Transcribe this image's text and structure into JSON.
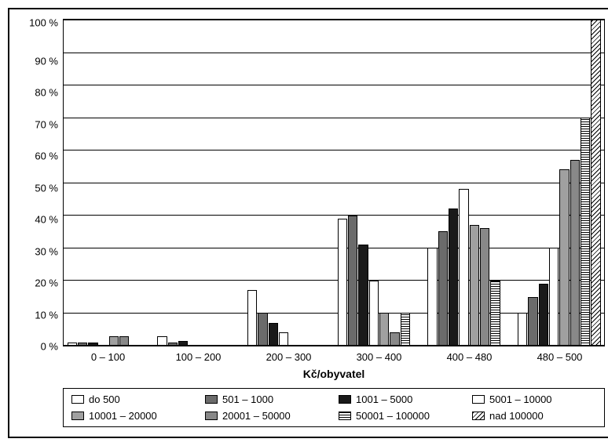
{
  "chart": {
    "type": "bar",
    "x_label": "Kč/obyvatel",
    "x_label_fontweight": "bold",
    "x_label_fontsize": 14,
    "axis_fontsize": 13,
    "ylim": [
      0,
      100
    ],
    "ytick_step": 10,
    "ysuffix": " %",
    "yticks": [
      "100 %",
      "90 %",
      "80 %",
      "70 %",
      "60 %",
      "50 %",
      "40 %",
      "30 %",
      "20 %",
      "10 %",
      "0 %"
    ],
    "categories": [
      "0 – 100",
      "100 – 200",
      "200 – 300",
      "300 – 400",
      "400 – 480",
      "480 – 500"
    ],
    "background_color": "#ffffff",
    "grid_color": "#000000",
    "border_color": "#000000",
    "series": [
      {
        "label": "do 500",
        "fill": "fill-white",
        "values": [
          1,
          3,
          17,
          39,
          30,
          10
        ]
      },
      {
        "label": "501 – 1000",
        "fill": "fill-gray-dark",
        "values": [
          1,
          1,
          10,
          40,
          35,
          15
        ]
      },
      {
        "label": "1001 – 5000",
        "fill": "fill-black",
        "values": [
          1,
          1.5,
          7,
          31,
          42,
          19
        ]
      },
      {
        "label": "5001 – 10000",
        "fill": "fill-white2",
        "values": [
          0,
          0,
          4,
          20,
          48,
          30
        ]
      },
      {
        "label": "10001 – 20000",
        "fill": "fill-gray-mid",
        "values": [
          3,
          0,
          0,
          10,
          37,
          54
        ]
      },
      {
        "label": "20001 – 50000",
        "fill": "fill-gray-60",
        "values": [
          3,
          0,
          0,
          4,
          36,
          57
        ]
      },
      {
        "label": "50001 – 100000",
        "fill": "fill-hstripe",
        "values": [
          0,
          0,
          0,
          10,
          20,
          70
        ]
      },
      {
        "label": "nad 100000",
        "fill": "fill-diag",
        "values": [
          0,
          0,
          0,
          0,
          0,
          100
        ]
      }
    ]
  }
}
